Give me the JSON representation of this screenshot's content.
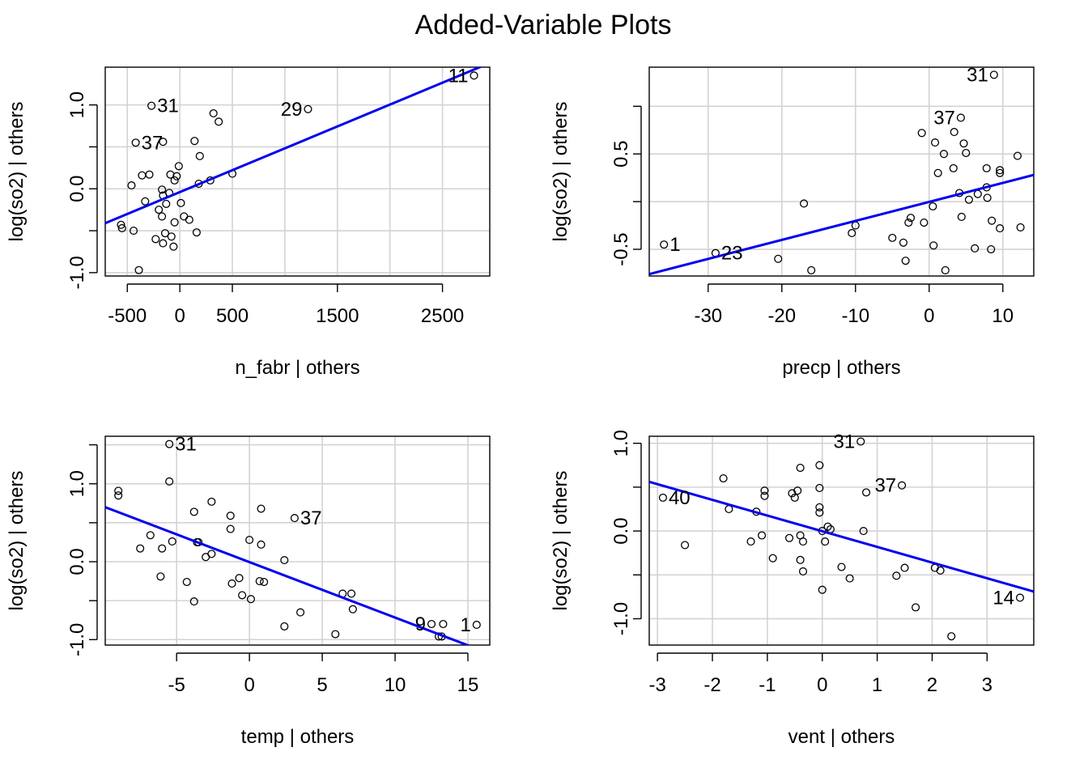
{
  "figure_title": "Added-Variable Plots",
  "colors": {
    "fit_line": "#0000ee",
    "grid": "#d3d3d3",
    "points": "#000000"
  },
  "chart_data": [
    {
      "type": "scatter",
      "title": "",
      "xlabel": "n_fabr | others",
      "ylabel": "log(so2)  | others",
      "xlim": [
        -710,
        2950
      ],
      "ylim": [
        -1.04,
        1.45
      ],
      "xticks": [
        -500,
        0,
        500,
        1500,
        2500
      ],
      "xtick_labels": [
        "-500",
        "0",
        "500",
        "1500",
        "2500"
      ],
      "xgrid": [
        -500,
        0,
        500,
        1000,
        1500,
        2000,
        2500
      ],
      "yticks": [
        -1.0,
        -0.5,
        0.0,
        0.5,
        1.0
      ],
      "ytick_labels": [
        "-1.0",
        "",
        "0.0",
        "",
        "1.0"
      ],
      "ygrid": [
        -1.0,
        -0.5,
        0.0,
        0.5,
        1.0
      ],
      "fit": {
        "x": [
          -710,
          2950
        ],
        "y": [
          -0.41,
          1.5
        ]
      },
      "points": [
        {
          "x": 2800,
          "y": 1.35
        },
        {
          "x": 1220,
          "y": 0.95
        },
        {
          "x": -270,
          "y": 0.99
        },
        {
          "x": 320,
          "y": 0.9
        },
        {
          "x": 370,
          "y": 0.8
        },
        {
          "x": -420,
          "y": 0.55
        },
        {
          "x": -160,
          "y": 0.56
        },
        {
          "x": 140,
          "y": 0.57
        },
        {
          "x": 190,
          "y": 0.39
        },
        {
          "x": -10,
          "y": 0.27
        },
        {
          "x": -360,
          "y": 0.16
        },
        {
          "x": -290,
          "y": 0.17
        },
        {
          "x": -90,
          "y": 0.17
        },
        {
          "x": -30,
          "y": 0.15
        },
        {
          "x": 500,
          "y": 0.18
        },
        {
          "x": 290,
          "y": 0.1
        },
        {
          "x": -50,
          "y": 0.1
        },
        {
          "x": 180,
          "y": 0.06
        },
        {
          "x": -460,
          "y": 0.04
        },
        {
          "x": -170,
          "y": -0.01
        },
        {
          "x": -100,
          "y": -0.05
        },
        {
          "x": -160,
          "y": -0.08
        },
        {
          "x": -330,
          "y": -0.15
        },
        {
          "x": -130,
          "y": -0.18
        },
        {
          "x": 10,
          "y": -0.17
        },
        {
          "x": -200,
          "y": -0.25
        },
        {
          "x": -170,
          "y": -0.33
        },
        {
          "x": 40,
          "y": -0.33
        },
        {
          "x": 90,
          "y": -0.37
        },
        {
          "x": -560,
          "y": -0.43
        },
        {
          "x": -550,
          "y": -0.47
        },
        {
          "x": -440,
          "y": -0.5
        },
        {
          "x": -140,
          "y": -0.53
        },
        {
          "x": 160,
          "y": -0.52
        },
        {
          "x": -230,
          "y": -0.6
        },
        {
          "x": -80,
          "y": -0.57
        },
        {
          "x": -160,
          "y": -0.65
        },
        {
          "x": -60,
          "y": -0.69
        },
        {
          "x": -390,
          "y": -0.97
        },
        {
          "x": -50,
          "y": -0.4
        }
      ],
      "labels": [
        {
          "x": 2800,
          "y": 1.35,
          "text": "11"
        },
        {
          "x": 1220,
          "y": 0.95,
          "text": "29"
        },
        {
          "x": -270,
          "y": 0.99,
          "text": "31",
          "side": "right"
        },
        {
          "x": -420,
          "y": 0.55,
          "text": "37",
          "side": "right"
        }
      ]
    },
    {
      "type": "scatter",
      "title": "",
      "xlabel": "precp | others",
      "ylabel": "log(so2)  | others",
      "xlim": [
        -38,
        14.2
      ],
      "ylim": [
        -0.78,
        1.41
      ],
      "xticks": [
        -30,
        -20,
        -10,
        0,
        10
      ],
      "xtick_labels": [
        "-30",
        "-20",
        "-10",
        "0",
        "10"
      ],
      "xgrid": [
        -30,
        -20,
        -10,
        0,
        10
      ],
      "yticks": [
        -0.5,
        0.0,
        0.5,
        1.0
      ],
      "ytick_labels": [
        "-0.5",
        "",
        "0.5",
        ""
      ],
      "ygrid": [
        -0.5,
        0.0,
        0.5,
        1.0
      ],
      "fit": {
        "x": [
          -38,
          14.2
        ],
        "y": [
          -0.76,
          0.28
        ]
      },
      "points": [
        {
          "x": -36,
          "y": -0.45
        },
        {
          "x": -29,
          "y": -0.54
        },
        {
          "x": -20.5,
          "y": -0.6
        },
        {
          "x": -17,
          "y": -0.02
        },
        {
          "x": -16,
          "y": -0.72
        },
        {
          "x": -10.5,
          "y": -0.33
        },
        {
          "x": -10,
          "y": -0.25
        },
        {
          "x": -5,
          "y": -0.38
        },
        {
          "x": -3.5,
          "y": -0.43
        },
        {
          "x": -3.2,
          "y": -0.62
        },
        {
          "x": -2.8,
          "y": -0.22
        },
        {
          "x": -2.5,
          "y": -0.17
        },
        {
          "x": -1,
          "y": 0.72
        },
        {
          "x": -0.7,
          "y": -0.22
        },
        {
          "x": 0.5,
          "y": -0.05
        },
        {
          "x": 0.6,
          "y": -0.46
        },
        {
          "x": 0.8,
          "y": 0.62
        },
        {
          "x": 1.2,
          "y": 0.3
        },
        {
          "x": 2,
          "y": 0.5
        },
        {
          "x": 2.2,
          "y": -0.72
        },
        {
          "x": 3.3,
          "y": 0.35
        },
        {
          "x": 3.4,
          "y": 0.73
        },
        {
          "x": 4.1,
          "y": 0.09
        },
        {
          "x": 4.3,
          "y": 0.88
        },
        {
          "x": 4.4,
          "y": -0.16
        },
        {
          "x": 4.7,
          "y": 0.61
        },
        {
          "x": 5.0,
          "y": 0.51
        },
        {
          "x": 5.4,
          "y": 0.02
        },
        {
          "x": 6.2,
          "y": -0.49
        },
        {
          "x": 6.6,
          "y": 0.08
        },
        {
          "x": 7.8,
          "y": 0.15
        },
        {
          "x": 7.8,
          "y": 0.35
        },
        {
          "x": 7.9,
          "y": 0.04
        },
        {
          "x": 8.4,
          "y": -0.5
        },
        {
          "x": 8.5,
          "y": -0.2
        },
        {
          "x": 8.8,
          "y": 1.33
        },
        {
          "x": 9.6,
          "y": 0.33
        },
        {
          "x": 9.6,
          "y": 0.3
        },
        {
          "x": 9.6,
          "y": -0.28
        },
        {
          "x": 12.0,
          "y": 0.48
        },
        {
          "x": 12.4,
          "y": -0.27
        }
      ],
      "labels": [
        {
          "x": 8.8,
          "y": 1.33,
          "text": "31"
        },
        {
          "x": 4.3,
          "y": 0.88,
          "text": "37"
        },
        {
          "x": -36,
          "y": -0.45,
          "text": "1",
          "side": "right"
        },
        {
          "x": -29,
          "y": -0.54,
          "text": "23",
          "side": "right"
        }
      ]
    },
    {
      "type": "scatter",
      "title": "",
      "xlabel": "temp | others",
      "ylabel": "log(so2)  | others",
      "xlim": [
        -9.9,
        16.5
      ],
      "ylim": [
        -1.07,
        1.61
      ],
      "xticks": [
        -5,
        0,
        5,
        10,
        15
      ],
      "xtick_labels": [
        "-5",
        "0",
        "5",
        "10",
        "15"
      ],
      "xgrid": [
        -5,
        0,
        5,
        10,
        15
      ],
      "yticks": [
        -1.0,
        -0.5,
        0.0,
        0.5,
        1.0,
        1.5
      ],
      "ytick_labels": [
        "-1.0",
        "",
        "0.0",
        "",
        "1.0",
        ""
      ],
      "ygrid": [
        -1.0,
        -0.5,
        0.0,
        0.5,
        1.0,
        1.5
      ],
      "fit": {
        "x": [
          -9.9,
          16.5
        ],
        "y": [
          0.7,
          -1.18
        ]
      },
      "points": [
        {
          "x": -9,
          "y": 0.91
        },
        {
          "x": -9,
          "y": 0.85
        },
        {
          "x": -5.5,
          "y": 1.51
        },
        {
          "x": -5.5,
          "y": 1.03
        },
        {
          "x": -7.5,
          "y": 0.17
        },
        {
          "x": -6.8,
          "y": 0.34
        },
        {
          "x": -6,
          "y": 0.17
        },
        {
          "x": -6.1,
          "y": -0.19
        },
        {
          "x": -5.3,
          "y": 0.26
        },
        {
          "x": -4.3,
          "y": -0.26
        },
        {
          "x": -3.8,
          "y": 0.64
        },
        {
          "x": -3.8,
          "y": -0.51
        },
        {
          "x": -3.6,
          "y": 0.25
        },
        {
          "x": -3.5,
          "y": 0.25
        },
        {
          "x": -3.0,
          "y": 0.06
        },
        {
          "x": -2.6,
          "y": 0.77
        },
        {
          "x": -2.6,
          "y": 0.1
        },
        {
          "x": -1.3,
          "y": 0.59
        },
        {
          "x": -1.3,
          "y": 0.42
        },
        {
          "x": -1.2,
          "y": -0.28
        },
        {
          "x": -0.7,
          "y": -0.21
        },
        {
          "x": -0.5,
          "y": -0.43
        },
        {
          "x": 0,
          "y": 0.28
        },
        {
          "x": 0.1,
          "y": -0.48
        },
        {
          "x": 0.7,
          "y": -0.25
        },
        {
          "x": 0.8,
          "y": 0.22
        },
        {
          "x": 0.8,
          "y": 0.68
        },
        {
          "x": 1.0,
          "y": -0.26
        },
        {
          "x": 2.4,
          "y": 0.02
        },
        {
          "x": 2.4,
          "y": -0.83
        },
        {
          "x": 3.1,
          "y": 0.56
        },
        {
          "x": 3.5,
          "y": -0.65
        },
        {
          "x": 5.9,
          "y": -0.93
        },
        {
          "x": 6.4,
          "y": -0.41
        },
        {
          "x": 7.0,
          "y": -0.41
        },
        {
          "x": 7.1,
          "y": -0.61
        },
        {
          "x": 12.5,
          "y": -0.8
        },
        {
          "x": 13.0,
          "y": -0.96
        },
        {
          "x": 13.2,
          "y": -0.96
        },
        {
          "x": 13.3,
          "y": -0.8
        },
        {
          "x": 15.6,
          "y": -0.81
        }
      ],
      "labels": [
        {
          "x": -5.5,
          "y": 1.51,
          "text": "31",
          "side": "right"
        },
        {
          "x": 3.1,
          "y": 0.56,
          "text": "37",
          "side": "right"
        },
        {
          "x": 12.5,
          "y": -0.8,
          "text": "9"
        },
        {
          "x": 15.6,
          "y": -0.81,
          "text": "1"
        }
      ]
    },
    {
      "type": "scatter",
      "title": "",
      "xlabel": "vent | others",
      "ylabel": "log(so2)  | others",
      "xlim": [
        -3.15,
        3.85
      ],
      "ylim": [
        -1.3,
        1.08
      ],
      "xticks": [
        -3,
        -2,
        -1,
        0,
        1,
        2,
        3
      ],
      "xtick_labels": [
        "-3",
        "-2",
        "-1",
        "0",
        "1",
        "2",
        "3"
      ],
      "xgrid": [
        -3,
        -2,
        -1,
        0,
        1,
        2,
        3
      ],
      "yticks": [
        -1.0,
        -0.5,
        0.0,
        0.5,
        1.0
      ],
      "ytick_labels": [
        "-1.0",
        "",
        "0.0",
        "",
        "1.0"
      ],
      "ygrid": [
        -1.0,
        -0.5,
        0.0,
        0.5,
        1.0
      ],
      "fit": {
        "x": [
          -3.15,
          3.85
        ],
        "y": [
          0.56,
          -0.69
        ]
      },
      "points": [
        {
          "x": -2.9,
          "y": 0.38
        },
        {
          "x": -2.5,
          "y": -0.16
        },
        {
          "x": -1.8,
          "y": 0.6
        },
        {
          "x": -1.7,
          "y": 0.25
        },
        {
          "x": -1.3,
          "y": -0.12
        },
        {
          "x": -1.2,
          "y": 0.22
        },
        {
          "x": -1.1,
          "y": -0.05
        },
        {
          "x": -1.05,
          "y": 0.4
        },
        {
          "x": -1.05,
          "y": 0.46
        },
        {
          "x": -0.9,
          "y": -0.31
        },
        {
          "x": -0.6,
          "y": -0.08
        },
        {
          "x": -0.55,
          "y": 0.43
        },
        {
          "x": -0.5,
          "y": 0.38
        },
        {
          "x": -0.45,
          "y": 0.46
        },
        {
          "x": -0.4,
          "y": 0.72
        },
        {
          "x": -0.4,
          "y": -0.05
        },
        {
          "x": -0.4,
          "y": -0.33
        },
        {
          "x": -0.35,
          "y": -0.12
        },
        {
          "x": -0.35,
          "y": -0.46
        },
        {
          "x": -0.05,
          "y": 0.75
        },
        {
          "x": -0.05,
          "y": 0.49
        },
        {
          "x": -0.05,
          "y": 0.27
        },
        {
          "x": -0.05,
          "y": 0.21
        },
        {
          "x": 0,
          "y": 0
        },
        {
          "x": 0.05,
          "y": -0.12
        },
        {
          "x": 0.1,
          "y": 0.05
        },
        {
          "x": 0.15,
          "y": 0.02
        },
        {
          "x": 0,
          "y": -0.67
        },
        {
          "x": 0.35,
          "y": -0.41
        },
        {
          "x": 0.5,
          "y": -0.54
        },
        {
          "x": 0.7,
          "y": 1.02
        },
        {
          "x": 0.75,
          "y": 0
        },
        {
          "x": 0.8,
          "y": 0.44
        },
        {
          "x": 1.35,
          "y": -0.51
        },
        {
          "x": 1.45,
          "y": 0.52
        },
        {
          "x": 1.5,
          "y": -0.42
        },
        {
          "x": 1.7,
          "y": -0.87
        },
        {
          "x": 2.05,
          "y": -0.42
        },
        {
          "x": 2.15,
          "y": -0.45
        },
        {
          "x": 2.35,
          "y": -1.2
        },
        {
          "x": 3.6,
          "y": -0.76
        }
      ],
      "labels": [
        {
          "x": 0.7,
          "y": 1.02,
          "text": "31"
        },
        {
          "x": 1.45,
          "y": 0.52,
          "text": "37"
        },
        {
          "x": -2.9,
          "y": 0.38,
          "text": "40",
          "side": "right"
        },
        {
          "x": 3.6,
          "y": -0.76,
          "text": "14"
        }
      ]
    }
  ]
}
